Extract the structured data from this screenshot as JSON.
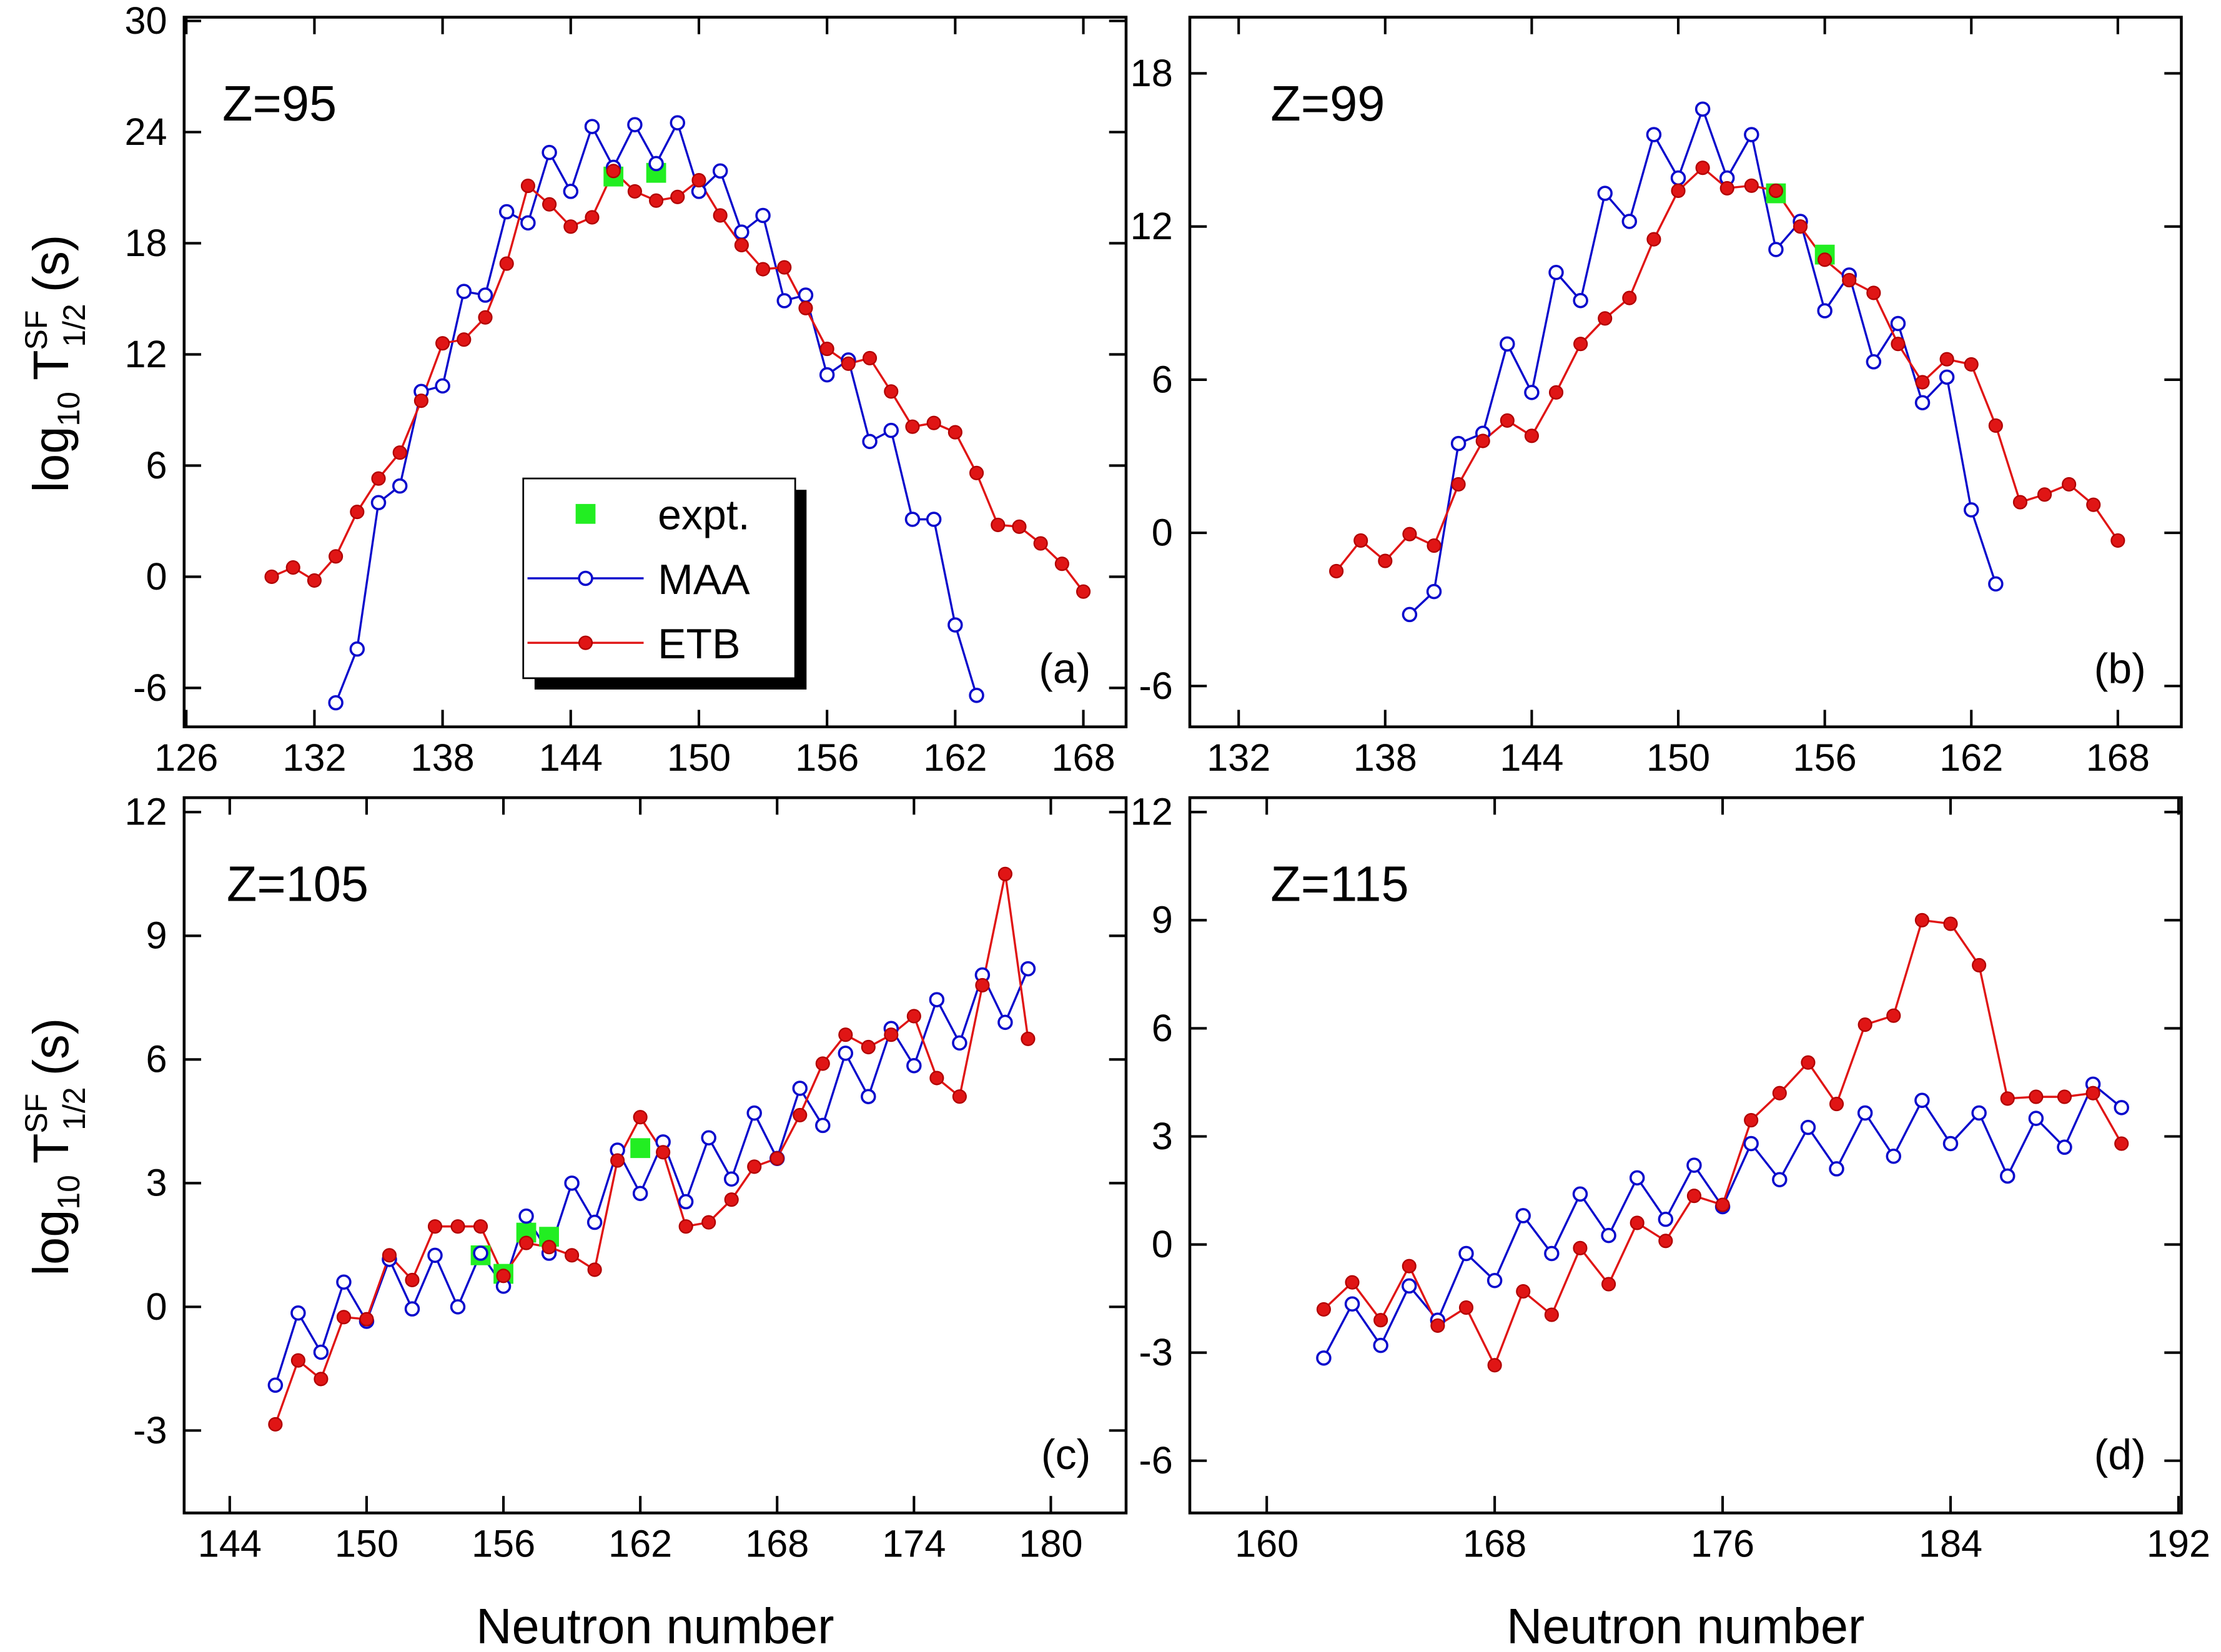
{
  "chart_data": [
    {
      "type": "line",
      "annotation": "Z=95",
      "panel_label": "(a)",
      "ylabel": {
        "log": "log",
        "log_sub": "10",
        "main": "T",
        "sup": "SF",
        "sub": "1/2",
        "unit": "(s)"
      },
      "xlim": [
        125.9,
        170
      ],
      "xticks": [
        126,
        132,
        138,
        144,
        150,
        156,
        162,
        168
      ],
      "ylim": [
        -8.1,
        30.2
      ],
      "yticks": [
        -6,
        0,
        6,
        12,
        18,
        24,
        30
      ],
      "legend": "center",
      "series": [
        {
          "name": "expt.",
          "color": "#22ee22",
          "marker": "square",
          "line": false,
          "x": [
            146,
            148
          ],
          "values": [
            21.6,
            21.8
          ]
        },
        {
          "name": "MAA",
          "color": "#0a0acc",
          "marker": "open-circle",
          "line": true,
          "x": [
            133,
            134,
            135,
            136,
            137,
            138,
            139,
            140,
            141,
            142,
            143,
            144,
            145,
            146,
            147,
            148,
            149,
            150,
            151,
            152,
            153,
            154,
            155,
            156,
            157,
            158,
            159,
            160,
            161,
            162,
            163
          ],
          "values": [
            -6.8,
            -3.9,
            4.0,
            4.9,
            10.0,
            10.3,
            15.4,
            15.2,
            19.7,
            19.1,
            22.9,
            20.8,
            24.3,
            22.1,
            24.4,
            22.3,
            24.5,
            20.8,
            21.9,
            18.6,
            19.5,
            14.9,
            15.2,
            10.9,
            11.7,
            7.3,
            7.9,
            3.1,
            3.1,
            -2.6,
            -6.4
          ]
        },
        {
          "name": "ETB",
          "color": "#e01515",
          "marker": "circle",
          "line": true,
          "x": [
            130,
            131,
            132,
            133,
            134,
            135,
            136,
            137,
            138,
            139,
            140,
            141,
            142,
            143,
            144,
            145,
            146,
            147,
            148,
            149,
            150,
            151,
            152,
            153,
            154,
            155,
            156,
            157,
            158,
            159,
            160,
            161,
            162,
            163,
            164,
            165,
            166,
            167,
            168
          ],
          "values": [
            0,
            0.5,
            -0.2,
            1.1,
            3.5,
            5.3,
            6.7,
            9.5,
            12.6,
            12.8,
            14.0,
            16.9,
            21.1,
            20.1,
            18.9,
            19.4,
            21.9,
            20.8,
            20.3,
            20.5,
            21.4,
            19.5,
            17.9,
            16.6,
            16.7,
            14.5,
            12.3,
            11.5,
            11.8,
            10,
            8.1,
            8.3,
            7.8,
            5.6,
            2.8,
            2.7,
            1.8,
            0.7,
            -0.8
          ]
        }
      ]
    },
    {
      "type": "line",
      "annotation": "Z=99",
      "panel_label": "(b)",
      "xlim": [
        130,
        170.6
      ],
      "xticks": [
        132,
        138,
        144,
        150,
        156,
        162,
        168
      ],
      "ylim": [
        -7.6,
        20.2
      ],
      "yticks": [
        -6,
        0,
        6,
        12,
        18
      ],
      "series": [
        {
          "name": "expt.",
          "color": "#22ee22",
          "marker": "square",
          "line": false,
          "x": [
            154,
            156
          ],
          "values": [
            13.3,
            10.9
          ]
        },
        {
          "name": "MAA",
          "color": "#0a0acc",
          "marker": "open-circle",
          "line": true,
          "x": [
            139,
            140,
            141,
            142,
            143,
            144,
            145,
            146,
            147,
            148,
            149,
            150,
            151,
            152,
            153,
            154,
            155,
            156,
            157,
            158,
            159,
            160,
            161,
            162,
            163
          ],
          "values": [
            -3.2,
            -2.3,
            3.5,
            3.9,
            7.4,
            5.5,
            10.2,
            9.1,
            13.3,
            12.2,
            15.6,
            13.9,
            16.6,
            13.9,
            15.6,
            11.1,
            12.2,
            8.7,
            10.1,
            6.7,
            8.2,
            5.1,
            6.1,
            0.9,
            -2.0
          ]
        },
        {
          "name": "ETB",
          "color": "#e01515",
          "marker": "circle",
          "line": true,
          "x": [
            136,
            137,
            138,
            139,
            140,
            141,
            142,
            143,
            144,
            145,
            146,
            147,
            148,
            149,
            150,
            151,
            152,
            153,
            154,
            155,
            156,
            157,
            158,
            159,
            160,
            161,
            162,
            163,
            164,
            165,
            166,
            167,
            168
          ],
          "values": [
            -1.5,
            -0.3,
            -1.1,
            -0.05,
            -0.5,
            1.9,
            3.6,
            4.4,
            3.8,
            5.5,
            7.4,
            8.4,
            9.2,
            11.5,
            13.4,
            14.3,
            13.5,
            13.6,
            13.4,
            12.0,
            10.7,
            9.9,
            9.4,
            7.4,
            5.9,
            6.8,
            6.6,
            4.2,
            1.2,
            1.5,
            1.9,
            1.1,
            -0.3
          ]
        }
      ]
    },
    {
      "type": "line",
      "annotation": "Z=105",
      "panel_label": "(c)",
      "xlabel": "Neutron number",
      "ylabel": {
        "log": "log",
        "log_sub": "10",
        "main": "T",
        "sup": "SF",
        "sub": "1/2",
        "unit": "(s)"
      },
      "xlim": [
        142,
        183.3
      ],
      "xticks": [
        144,
        150,
        156,
        162,
        168,
        174,
        180
      ],
      "ylim": [
        -5,
        12.35
      ],
      "yticks": [
        -3,
        0,
        3,
        6,
        9,
        12
      ],
      "series": [
        {
          "name": "expt.",
          "color": "#22ee22",
          "marker": "square",
          "line": false,
          "x": [
            155,
            156,
            157,
            158,
            162
          ],
          "values": [
            1.25,
            0.8,
            1.8,
            1.7,
            3.85
          ]
        },
        {
          "name": "MAA",
          "color": "#0a0acc",
          "marker": "open-circle",
          "line": true,
          "x": [
            146,
            147,
            148,
            149,
            150,
            151,
            152,
            153,
            154,
            155,
            156,
            157,
            158,
            159,
            160,
            161,
            162,
            163,
            164,
            165,
            166,
            167,
            168,
            169,
            170,
            171,
            172,
            173,
            174,
            175,
            176,
            177,
            178,
            179
          ],
          "values": [
            -1.9,
            -0.15,
            -1.1,
            0.6,
            -0.35,
            1.15,
            -0.05,
            1.25,
            0,
            1.3,
            0.5,
            2.2,
            1.3,
            3.0,
            2.05,
            3.8,
            2.75,
            4.0,
            2.55,
            4.1,
            3.1,
            4.7,
            3.6,
            5.3,
            4.4,
            6.15,
            5.1,
            6.75,
            5.85,
            7.45,
            6.4,
            8.05,
            6.9,
            8.2
          ]
        },
        {
          "name": "ETB",
          "color": "#e01515",
          "marker": "circle",
          "line": true,
          "x": [
            146,
            147,
            148,
            149,
            150,
            151,
            152,
            153,
            154,
            155,
            156,
            157,
            158,
            159,
            160,
            161,
            162,
            163,
            164,
            165,
            166,
            167,
            168,
            169,
            170,
            171,
            172,
            173,
            174,
            175,
            176,
            177,
            178,
            179
          ],
          "values": [
            -2.85,
            -1.3,
            -1.75,
            -0.25,
            -0.3,
            1.25,
            0.65,
            1.95,
            1.95,
            1.95,
            0.75,
            1.55,
            1.45,
            1.25,
            0.9,
            3.55,
            4.6,
            3.75,
            1.95,
            2.05,
            2.6,
            3.4,
            3.6,
            4.65,
            5.9,
            6.6,
            6.3,
            6.6,
            7.05,
            5.55,
            5.1,
            7.8,
            10.5,
            6.5
          ]
        }
      ]
    },
    {
      "type": "line",
      "annotation": "Z=115",
      "panel_label": "(d)",
      "xlabel": "Neutron number",
      "xlim": [
        157.3,
        192.1
      ],
      "xticks": [
        160,
        168,
        176,
        184,
        192
      ],
      "ylim": [
        -7.45,
        12.4
      ],
      "yticks": [
        -6,
        -3,
        0,
        3,
        6,
        9,
        12
      ],
      "series": [
        {
          "name": "MAA",
          "color": "#0a0acc",
          "marker": "open-circle",
          "line": true,
          "x": [
            162,
            163,
            164,
            165,
            166,
            167,
            168,
            169,
            170,
            171,
            172,
            173,
            174,
            175,
            176,
            177,
            178,
            179,
            180,
            181,
            182,
            183,
            184,
            185,
            186,
            187,
            188,
            189,
            190
          ],
          "values": [
            -3.15,
            -1.65,
            -2.8,
            -1.15,
            -2.1,
            -0.25,
            -1.0,
            0.8,
            -0.25,
            1.4,
            0.25,
            1.85,
            0.7,
            2.2,
            1.05,
            2.8,
            1.8,
            3.25,
            2.1,
            3.65,
            2.45,
            4.0,
            2.8,
            3.65,
            1.9,
            3.5,
            2.7,
            4.45,
            3.8
          ]
        },
        {
          "name": "ETB",
          "color": "#e01515",
          "marker": "circle",
          "line": true,
          "x": [
            162,
            163,
            164,
            165,
            166,
            167,
            168,
            169,
            170,
            171,
            172,
            173,
            174,
            175,
            176,
            177,
            178,
            179,
            180,
            181,
            182,
            183,
            184,
            185,
            186,
            187,
            188,
            189,
            190
          ],
          "values": [
            -1.8,
            -1.05,
            -2.1,
            -0.6,
            -2.25,
            -1.75,
            -3.35,
            -1.3,
            -1.95,
            -0.1,
            -1.1,
            0.6,
            0.1,
            1.35,
            1.1,
            3.45,
            4.2,
            5.05,
            3.9,
            6.1,
            6.35,
            9.0,
            8.9,
            7.75,
            4.05,
            4.1,
            4.1,
            4.2,
            2.8
          ]
        }
      ]
    }
  ]
}
